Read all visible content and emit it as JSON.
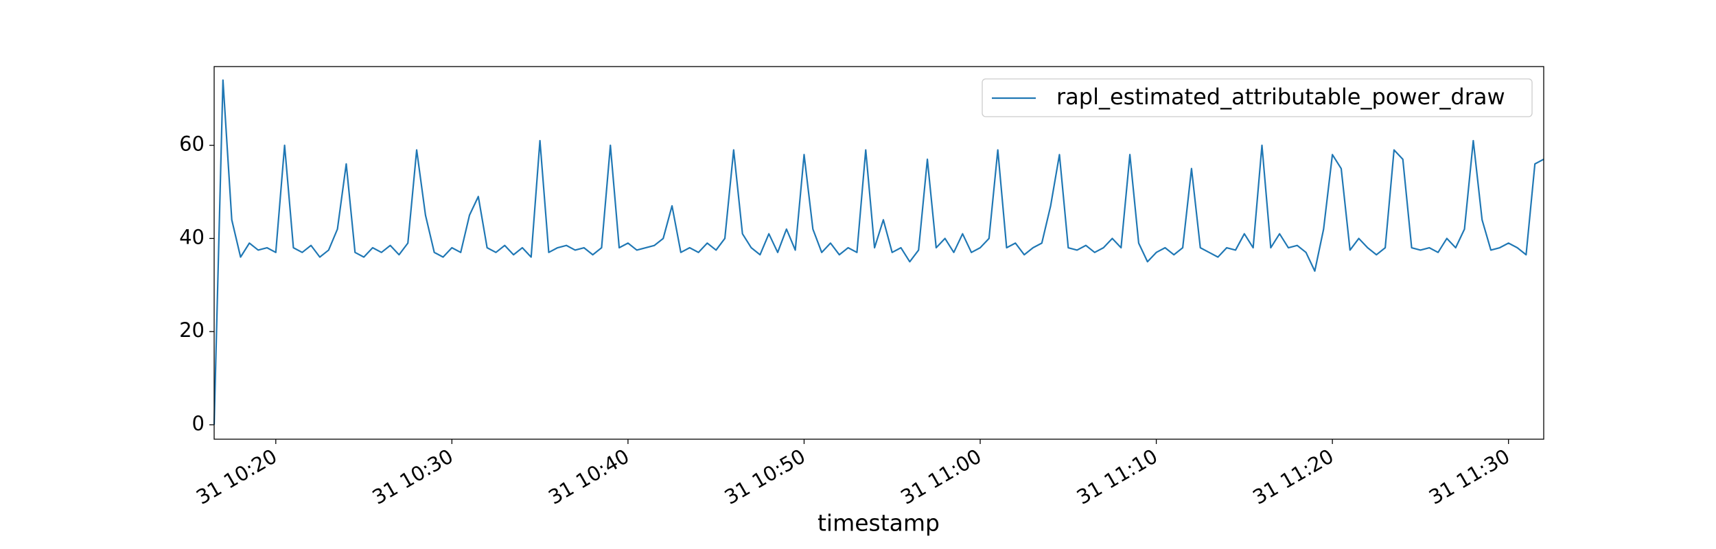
{
  "chart_data": {
    "type": "line",
    "xlabel": "timestamp",
    "x": [
      "31 10:16:30",
      "31 10:17:00",
      "31 10:17:30",
      "31 10:18:00",
      "31 10:18:30",
      "31 10:19:00",
      "31 10:19:30",
      "31 10:20:00",
      "31 10:20:30",
      "31 10:21:00",
      "31 10:21:30",
      "31 10:22:00",
      "31 10:22:30",
      "31 10:23:00",
      "31 10:23:30",
      "31 10:24:00",
      "31 10:24:30",
      "31 10:25:00",
      "31 10:25:30",
      "31 10:26:00",
      "31 10:26:30",
      "31 10:27:00",
      "31 10:27:30",
      "31 10:28:00",
      "31 10:28:30",
      "31 10:29:00",
      "31 10:29:30",
      "31 10:30:00",
      "31 10:30:30",
      "31 10:31:00",
      "31 10:31:30",
      "31 10:32:00",
      "31 10:32:30",
      "31 10:33:00",
      "31 10:33:30",
      "31 10:34:00",
      "31 10:34:30",
      "31 10:35:00",
      "31 10:35:30",
      "31 10:36:00",
      "31 10:36:30",
      "31 10:37:00",
      "31 10:37:30",
      "31 10:38:00",
      "31 10:38:30",
      "31 10:39:00",
      "31 10:39:30",
      "31 10:40:00",
      "31 10:40:30",
      "31 10:41:00",
      "31 10:41:30",
      "31 10:42:00",
      "31 10:42:30",
      "31 10:43:00",
      "31 10:43:30",
      "31 10:44:00",
      "31 10:44:30",
      "31 10:45:00",
      "31 10:45:30",
      "31 10:46:00",
      "31 10:46:30",
      "31 10:47:00",
      "31 10:47:30",
      "31 10:48:00",
      "31 10:48:30",
      "31 10:49:00",
      "31 10:49:30",
      "31 10:50:00",
      "31 10:50:30",
      "31 10:51:00",
      "31 10:51:30",
      "31 10:52:00",
      "31 10:52:30",
      "31 10:53:00",
      "31 10:53:30",
      "31 10:54:00",
      "31 10:54:30",
      "31 10:55:00",
      "31 10:55:30",
      "31 10:56:00",
      "31 10:56:30",
      "31 10:57:00",
      "31 10:57:30",
      "31 10:58:00",
      "31 10:58:30",
      "31 10:59:00",
      "31 10:59:30",
      "31 11:00:00",
      "31 11:00:30",
      "31 11:01:00",
      "31 11:01:30",
      "31 11:02:00",
      "31 11:02:30",
      "31 11:03:00",
      "31 11:03:30",
      "31 11:04:00",
      "31 11:04:30",
      "31 11:05:00",
      "31 11:05:30",
      "31 11:06:00",
      "31 11:06:30",
      "31 11:07:00",
      "31 11:07:30",
      "31 11:08:00",
      "31 11:08:30",
      "31 11:09:00",
      "31 11:09:30",
      "31 11:10:00",
      "31 11:10:30",
      "31 11:11:00",
      "31 11:11:30",
      "31 11:12:00",
      "31 11:12:30",
      "31 11:13:00",
      "31 11:13:30",
      "31 11:14:00",
      "31 11:14:30",
      "31 11:15:00",
      "31 11:15:30",
      "31 11:16:00",
      "31 11:16:30",
      "31 11:17:00",
      "31 11:17:30",
      "31 11:18:00",
      "31 11:18:30",
      "31 11:19:00",
      "31 11:19:30",
      "31 11:20:00",
      "31 11:20:30",
      "31 11:21:00",
      "31 11:21:30",
      "31 11:22:00",
      "31 11:22:30",
      "31 11:23:00",
      "31 11:23:30",
      "31 11:24:00",
      "31 11:24:30",
      "31 11:25:00",
      "31 11:25:30",
      "31 11:26:00",
      "31 11:26:30",
      "31 11:27:00",
      "31 11:27:30",
      "31 11:28:00",
      "31 11:28:30",
      "31 11:29:00",
      "31 11:29:30",
      "31 11:30:00",
      "31 11:30:30",
      "31 11:31:00",
      "31 11:31:30",
      "31 11:32:00"
    ],
    "series": [
      {
        "name": "rapl_estimated_attributable_power_draw",
        "color": "#1f77b4",
        "values": [
          0,
          74,
          44,
          36,
          39,
          37.5,
          38,
          37,
          60,
          38,
          37,
          38.5,
          36,
          37.5,
          42,
          56,
          37,
          36,
          38,
          37,
          38.5,
          36.5,
          39,
          59,
          45,
          37,
          36,
          38,
          37,
          45,
          49,
          38,
          37,
          38.5,
          36.5,
          38,
          36,
          61,
          37,
          38,
          38.5,
          37.5,
          38,
          36.5,
          38,
          60,
          38,
          39,
          37.5,
          38,
          38.5,
          40,
          47,
          37,
          38,
          37,
          39,
          37.5,
          40,
          59,
          41,
          38,
          36.5,
          41,
          37,
          42,
          37.5,
          58,
          42,
          37,
          39,
          36.5,
          38,
          37,
          59,
          38,
          44,
          37,
          38,
          35,
          37.5,
          57,
          38,
          40,
          37,
          41,
          37,
          38,
          40,
          59,
          38,
          39,
          36.5,
          38,
          39,
          47,
          58,
          38,
          37.5,
          38.5,
          37,
          38,
          40,
          38,
          58,
          39,
          35,
          37,
          38,
          36.5,
          38,
          55,
          38,
          37,
          36,
          38,
          37.5,
          41,
          38,
          60,
          38,
          41,
          38,
          38.5,
          37,
          33,
          42,
          58,
          55,
          37.5,
          40,
          38,
          36.5,
          38,
          59,
          57,
          38,
          37.5,
          38,
          37,
          40,
          38,
          42,
          61,
          44,
          37.5,
          38,
          39,
          38,
          36.5,
          56,
          57
        ]
      }
    ],
    "xlim": [
      "31 10:16:30",
      "31 11:32:00"
    ],
    "xticks": [
      "31 10:20",
      "31 10:30",
      "31 10:40",
      "31 10:50",
      "31 11:00",
      "31 11:10",
      "31 11:20",
      "31 11:30"
    ],
    "ylim": [
      -3.1,
      76.9
    ],
    "yticks": [
      0,
      20,
      40,
      60
    ],
    "legend": "upper right"
  }
}
